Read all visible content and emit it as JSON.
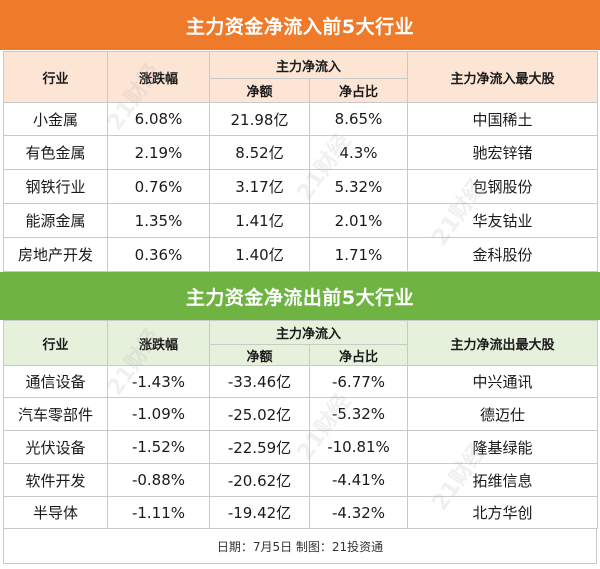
{
  "colors": {
    "inflow_banner": "#ee7a2a",
    "inflow_header": "#fde5d6",
    "outflow_banner": "#6fb443",
    "outflow_header": "#e6f1dc"
  },
  "inflow": {
    "title": "主力资金净流入前5大行业",
    "headers": {
      "industry": "行业",
      "change": "涨跌幅",
      "group": "主力净流入",
      "net_amount": "净额",
      "net_ratio": "净占比",
      "top_stock": "主力净流入最大股"
    },
    "rows": [
      {
        "industry": "小金属",
        "change": "6.08%",
        "net_amount": "21.98亿",
        "net_ratio": "8.65%",
        "top_stock": "中国稀土"
      },
      {
        "industry": "有色金属",
        "change": "2.19%",
        "net_amount": "8.52亿",
        "net_ratio": "4.3%",
        "top_stock": "驰宏锌锗"
      },
      {
        "industry": "钢铁行业",
        "change": "0.76%",
        "net_amount": "3.17亿",
        "net_ratio": "5.32%",
        "top_stock": "包钢股份"
      },
      {
        "industry": "能源金属",
        "change": "1.35%",
        "net_amount": "1.41亿",
        "net_ratio": "2.01%",
        "top_stock": "华友钴业"
      },
      {
        "industry": "房地产开发",
        "change": "0.36%",
        "net_amount": "1.40亿",
        "net_ratio": "1.71%",
        "top_stock": "金科股份"
      }
    ]
  },
  "outflow": {
    "title": "主力资金净流出前5大行业",
    "headers": {
      "industry": "行业",
      "change": "涨跌幅",
      "group": "主力净流入",
      "net_amount": "净额",
      "net_ratio": "净占比",
      "top_stock": "主力净流出最大股"
    },
    "rows": [
      {
        "industry": "通信设备",
        "change": "-1.43%",
        "net_amount": "-33.46亿",
        "net_ratio": "-6.77%",
        "top_stock": "中兴通讯"
      },
      {
        "industry": "汽车零部件",
        "change": "-1.09%",
        "net_amount": "-25.02亿",
        "net_ratio": "-5.32%",
        "top_stock": "德迈仕"
      },
      {
        "industry": "光伏设备",
        "change": "-1.52%",
        "net_amount": "-22.59亿",
        "net_ratio": "-10.81%",
        "top_stock": "隆基绿能"
      },
      {
        "industry": "软件开发",
        "change": "-0.88%",
        "net_amount": "-20.62亿",
        "net_ratio": "-4.41%",
        "top_stock": "拓维信息"
      },
      {
        "industry": "半导体",
        "change": "-1.11%",
        "net_amount": "-19.42亿",
        "net_ratio": "-4.32%",
        "top_stock": "北方华创"
      }
    ]
  },
  "footer": {
    "text": "日期：7月5日 制图：21投资通"
  },
  "watermark": {
    "text": "21财经"
  }
}
